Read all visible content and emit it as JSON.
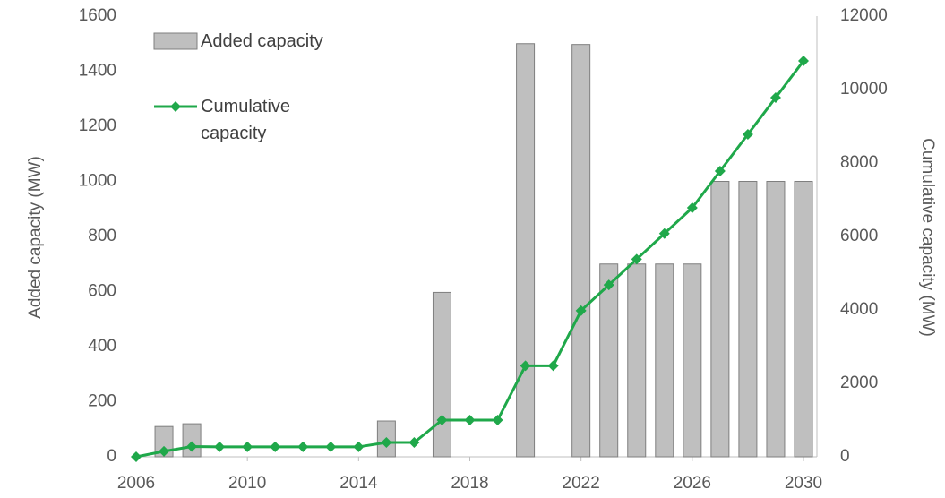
{
  "chart_data": {
    "type": "bar",
    "x": [
      2006,
      2007,
      2008,
      2009,
      2010,
      2011,
      2012,
      2013,
      2014,
      2015,
      2016,
      2017,
      2018,
      2019,
      2020,
      2021,
      2022,
      2023,
      2024,
      2025,
      2026,
      2027,
      2028,
      2029,
      2030
    ],
    "series": [
      {
        "name": "Added capacity",
        "type": "bar",
        "color": "#bfbfbf",
        "axis": "y",
        "values": [
          null,
          110,
          120,
          null,
          null,
          null,
          null,
          null,
          null,
          130,
          null,
          597,
          null,
          null,
          1500,
          null,
          1497,
          700,
          700,
          700,
          700,
          1000,
          1000,
          1000,
          1000
        ]
      },
      {
        "name": "Cumulative capacity",
        "type": "line",
        "color": "#1fa84a",
        "axis": "y2",
        "values": [
          0,
          150,
          280,
          270,
          270,
          270,
          270,
          270,
          270,
          390,
          390,
          1000,
          1000,
          1000,
          2480,
          2480,
          3980,
          4680,
          5380,
          6080,
          6780,
          7780,
          8780,
          9780,
          10780
        ]
      }
    ],
    "xlim": [
      2006,
      2030
    ],
    "xticks": [
      2006,
      2010,
      2014,
      2018,
      2022,
      2026,
      2030
    ],
    "ylim": [
      0,
      1600
    ],
    "yticks": [
      0,
      200,
      400,
      600,
      800,
      1000,
      1200,
      1400,
      1600
    ],
    "y2lim": [
      0,
      12000
    ],
    "y2ticks": [
      0,
      2000,
      4000,
      6000,
      8000,
      10000,
      12000
    ],
    "ylabel": "Added capacity (MW)",
    "y2label": "Cumulative capacity (MW)",
    "legend": "top-left",
    "grid": false
  }
}
